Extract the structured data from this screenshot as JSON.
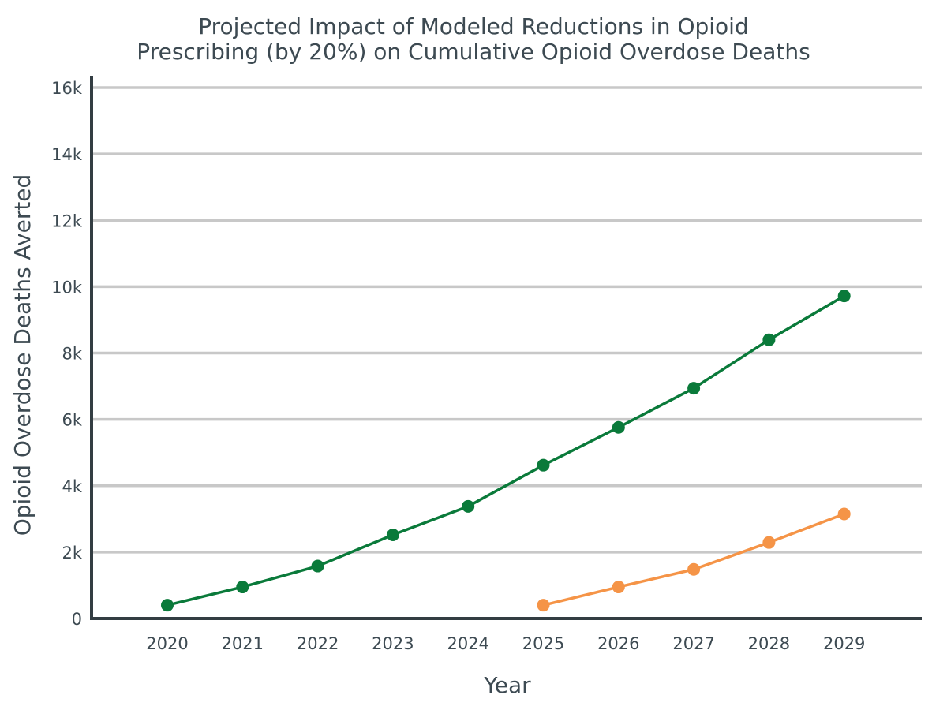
{
  "chart_data": {
    "type": "line",
    "title_lines": [
      "Projected Impact of Modeled Reductions in Opioid",
      "Prescribing (by 20%) on Cumulative Opioid Overdose Deaths"
    ],
    "xlabel": "Year",
    "ylabel": "Opioid Overdose Deaths Averted",
    "x": [
      "2020",
      "2021",
      "2022",
      "2023",
      "2024",
      "2025",
      "2026",
      "2027",
      "2028",
      "2029"
    ],
    "y_ticks": [
      0,
      2000,
      4000,
      6000,
      8000,
      10000,
      12000,
      14000,
      16000
    ],
    "y_tick_labels": [
      "0",
      "2k",
      "4k",
      "6k",
      "8k",
      "10k",
      "12k",
      "14k",
      "16k"
    ],
    "ylim": [
      0,
      16500
    ],
    "grid": true,
    "series": [
      {
        "color": "#0a7a3a",
        "x": [
          "2020",
          "2021",
          "2022",
          "2023",
          "2024",
          "2025",
          "2026",
          "2027",
          "2028",
          "2029"
        ],
        "values": [
          400,
          950,
          1580,
          2520,
          3380,
          4620,
          5760,
          6940,
          8400,
          9720
        ]
      },
      {
        "color": "#f59447",
        "x": [
          "2025",
          "2026",
          "2027",
          "2028",
          "2029"
        ],
        "values": [
          400,
          950,
          1480,
          2290,
          3150
        ]
      }
    ]
  }
}
